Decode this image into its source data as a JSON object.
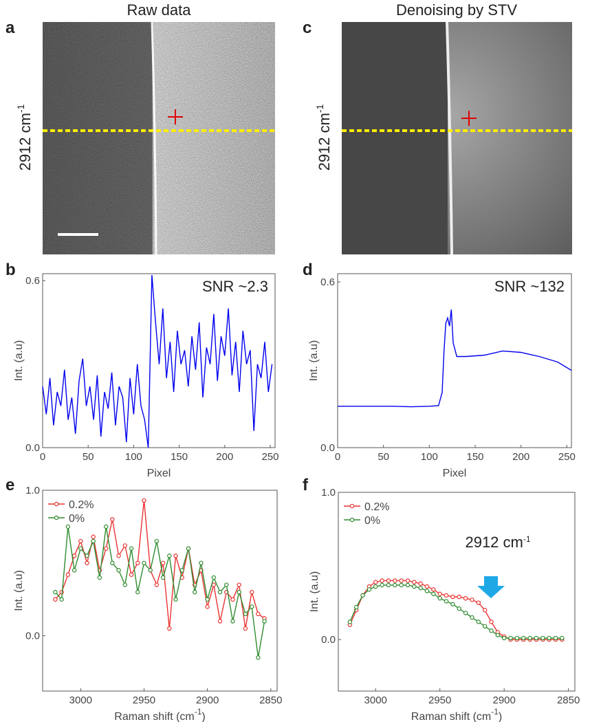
{
  "images": [
    {
      "panel": "a",
      "title": "Raw data",
      "label": {
        "text": "2912 cm",
        "sup": "-1"
      }
    },
    {
      "panel": "c",
      "title": "Denoising by STV",
      "label": {
        "text": "2912 cm",
        "sup": "-1"
      }
    }
  ],
  "chart_data": [
    {
      "type": "line",
      "panel": "b",
      "annotation": "SNR ~2.3",
      "xlabel": "Pixel",
      "ylabel": "Int. (a.u)",
      "xlim": [
        0,
        255.3
      ],
      "xticks": [
        0,
        50,
        100,
        150,
        200,
        250
      ],
      "ylim": [
        0,
        0.625
      ],
      "yticks": [
        {
          "value": 0,
          "label": "0.0"
        },
        0.6
      ],
      "x": [
        0,
        4,
        8,
        12,
        16,
        20,
        24,
        28,
        32,
        36,
        40,
        44,
        48,
        52,
        56,
        60,
        64,
        68,
        72,
        76,
        80,
        84,
        88,
        92,
        96,
        100,
        104,
        108,
        112,
        116,
        120,
        124,
        128,
        132,
        136,
        140,
        144,
        148,
        152,
        156,
        160,
        164,
        168,
        172,
        176,
        180,
        184,
        188,
        192,
        196,
        200,
        204,
        208,
        212,
        216,
        220,
        224,
        228,
        232,
        236,
        240,
        244,
        248,
        252
      ],
      "series": [
        {
          "color": "#0000ee",
          "values": [
            0.22,
            0.12,
            0.25,
            0.08,
            0.2,
            0.15,
            0.28,
            0.1,
            0.18,
            0.05,
            0.24,
            0.32,
            0.15,
            0.22,
            0.1,
            0.26,
            0.04,
            0.2,
            0.14,
            0.27,
            0.08,
            0.22,
            0.18,
            0.02,
            0.25,
            0.12,
            0.3,
            0.15,
            0.1,
            0.0,
            0.62,
            0.45,
            0.3,
            0.5,
            0.25,
            0.38,
            0.2,
            0.42,
            0.3,
            0.35,
            0.22,
            0.4,
            0.28,
            0.45,
            0.18,
            0.36,
            0.3,
            0.48,
            0.24,
            0.4,
            0.33,
            0.5,
            0.26,
            0.38,
            0.2,
            0.42,
            0.3,
            0.35,
            0.06,
            0.3,
            0.25,
            0.38,
            0.2,
            0.3
          ]
        }
      ]
    },
    {
      "type": "line",
      "panel": "d",
      "annotation": "SNR ~132",
      "xlabel": "Pixel",
      "ylabel": "Int. (a.u)",
      "xlim": [
        0,
        255
      ],
      "xticks": [
        0,
        50,
        100,
        150,
        200,
        250
      ],
      "ylim": [
        0,
        0.63
      ],
      "yticks": [
        {
          "value": 0,
          "label": "0.0"
        },
        0.6
      ],
      "x": [
        0,
        20,
        40,
        60,
        80,
        100,
        110,
        114,
        116,
        118,
        120,
        122,
        124,
        126,
        130,
        140,
        160,
        180,
        200,
        220,
        240,
        255
      ],
      "series": [
        {
          "color": "#0000ee",
          "values": [
            0.15,
            0.15,
            0.15,
            0.15,
            0.148,
            0.15,
            0.152,
            0.2,
            0.35,
            0.45,
            0.47,
            0.44,
            0.5,
            0.38,
            0.33,
            0.33,
            0.335,
            0.35,
            0.345,
            0.33,
            0.31,
            0.28
          ]
        }
      ]
    },
    {
      "type": "line",
      "panel": "e",
      "xlabel": {
        "text": "Raman shift (cm",
        "sup": "-1",
        "end": ")"
      },
      "ylabel": "Int. (a.u)",
      "xlim": [
        3030,
        2845
      ],
      "xticks": [
        3000,
        2950,
        2900,
        2850
      ],
      "ylim": [
        -0.38,
        1.0
      ],
      "yticks": [
        {
          "value": 0,
          "label": "0.0"
        },
        {
          "value": 1,
          "label": "1.0"
        }
      ],
      "markers": "circle",
      "legend": "upper left",
      "x": [
        3020,
        3015,
        3010,
        3005,
        3000,
        2995,
        2990,
        2985,
        2980,
        2975,
        2970,
        2965,
        2960,
        2955,
        2950,
        2945,
        2940,
        2935,
        2930,
        2925,
        2920,
        2915,
        2910,
        2905,
        2900,
        2895,
        2890,
        2885,
        2880,
        2875,
        2870,
        2865,
        2860,
        2855
      ],
      "series": [
        {
          "name": "0.2%",
          "color": "#e8322f",
          "values": [
            0.25,
            0.3,
            0.42,
            0.55,
            0.65,
            0.5,
            0.68,
            0.45,
            0.6,
            0.8,
            0.55,
            0.62,
            0.42,
            0.5,
            0.93,
            0.45,
            0.35,
            0.5,
            0.05,
            0.55,
            0.4,
            0.6,
            0.35,
            0.45,
            0.2,
            0.35,
            0.1,
            0.3,
            0.25,
            0.35,
            0.05,
            0.3,
            0.15,
            0.12
          ]
        },
        {
          "name": "0%",
          "color": "#2e8b2e",
          "values": [
            0.3,
            0.25,
            0.75,
            0.45,
            0.6,
            0.55,
            0.65,
            0.4,
            0.75,
            0.5,
            0.45,
            0.35,
            0.6,
            0.3,
            0.5,
            0.45,
            0.65,
            0.4,
            0.55,
            0.25,
            0.45,
            0.6,
            0.3,
            0.5,
            0.25,
            0.4,
            0.3,
            0.35,
            0.1,
            0.3,
            0.15,
            0.2,
            -0.15,
            0.1
          ]
        }
      ]
    },
    {
      "type": "line",
      "panel": "f",
      "xlabel": {
        "text": "Raman shift (cm",
        "sup": "-1",
        "end": ")"
      },
      "ylabel": "Int. (a.u)",
      "annotation": {
        "text": "2912 cm",
        "sup": "-1"
      },
      "xlim": [
        3029,
        2845
      ],
      "xticks": [
        3000,
        2950,
        2900,
        2850
      ],
      "ylim": [
        -0.35,
        1.0
      ],
      "yticks": [
        {
          "value": 0,
          "label": "0.0"
        },
        {
          "value": 1,
          "label": "1.0"
        }
      ],
      "markers": "circle",
      "legend": "upper left",
      "x": [
        3020,
        3015,
        3010,
        3005,
        3000,
        2995,
        2990,
        2985,
        2980,
        2975,
        2970,
        2965,
        2960,
        2955,
        2950,
        2945,
        2940,
        2935,
        2930,
        2925,
        2920,
        2915,
        2910,
        2905,
        2900,
        2895,
        2890,
        2885,
        2880,
        2875,
        2870,
        2865,
        2860,
        2855
      ],
      "series": [
        {
          "name": "0.2%",
          "color": "#e8322f",
          "values": [
            0.1,
            0.2,
            0.3,
            0.36,
            0.39,
            0.4,
            0.4,
            0.4,
            0.4,
            0.4,
            0.39,
            0.38,
            0.36,
            0.34,
            0.31,
            0.3,
            0.29,
            0.29,
            0.28,
            0.27,
            0.25,
            0.2,
            0.12,
            0.05,
            0.02,
            0.0,
            0.0,
            0.0,
            0.0,
            0.0,
            0.0,
            0.0,
            0.0,
            0.0
          ]
        },
        {
          "name": "0%",
          "color": "#2e8b2e",
          "values": [
            0.12,
            0.22,
            0.3,
            0.34,
            0.36,
            0.37,
            0.37,
            0.37,
            0.37,
            0.37,
            0.36,
            0.35,
            0.33,
            0.31,
            0.28,
            0.26,
            0.24,
            0.21,
            0.18,
            0.15,
            0.12,
            0.09,
            0.06,
            0.03,
            0.01,
            0.01,
            0.01,
            0.01,
            0.01,
            0.01,
            0.01,
            0.01,
            0.01,
            0.01
          ]
        }
      ]
    }
  ]
}
